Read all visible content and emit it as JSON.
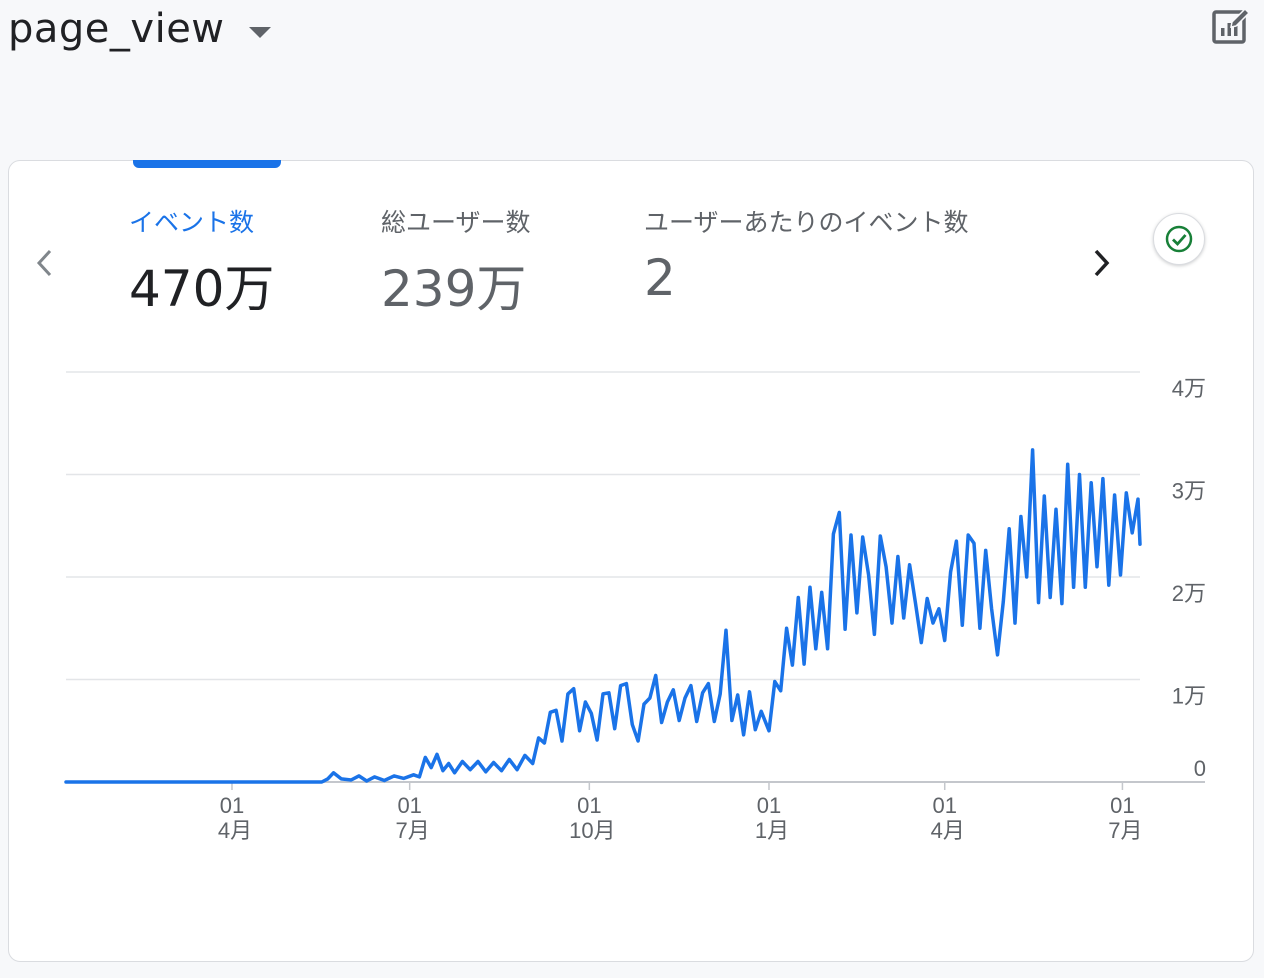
{
  "header": {
    "title": "page_view"
  },
  "metrics": [
    {
      "label": "イベント数",
      "value": "470万",
      "active": true
    },
    {
      "label": "総ユーザー数",
      "value": "239万",
      "active": false
    },
    {
      "label": "ユーザーあたりのイベント数",
      "value": "2",
      "active": false
    }
  ],
  "icons": {
    "edit": "edit-chart-icon",
    "prev": "chevron-left-icon",
    "next": "chevron-right-icon",
    "status": "check-circle-icon"
  },
  "colors": {
    "accent": "#1a73e8",
    "line": "#1a73e8",
    "check": "#188038"
  },
  "chart_data": {
    "type": "line",
    "title": "",
    "xlabel": "",
    "ylabel": "",
    "ylim": [
      0,
      40000
    ],
    "y_ticks": [
      {
        "value": 0,
        "label": "0"
      },
      {
        "value": 10000,
        "label": "1万"
      },
      {
        "value": 20000,
        "label": "2万"
      },
      {
        "value": 30000,
        "label": "3万"
      },
      {
        "value": 40000,
        "label": "4万"
      }
    ],
    "x_ticks": [
      {
        "date": "2022-04-01",
        "day": "01",
        "month": "4月"
      },
      {
        "date": "2022-07-01",
        "day": "01",
        "month": "7月"
      },
      {
        "date": "2022-10-01",
        "day": "01",
        "month": "10月"
      },
      {
        "date": "2023-01-01",
        "day": "01",
        "month": "1月"
      },
      {
        "date": "2023-04-01",
        "day": "01",
        "month": "4月"
      },
      {
        "date": "2023-07-01",
        "day": "01",
        "month": "7月"
      }
    ],
    "x_range": [
      "2022-01-06",
      "2023-07-10"
    ],
    "series": [
      {
        "points": [
          [
            "2022-01-06",
            0
          ],
          [
            "2022-05-17",
            0
          ],
          [
            "2022-05-20",
            300
          ],
          [
            "2022-05-23",
            900
          ],
          [
            "2022-05-27",
            300
          ],
          [
            "2022-06-01",
            200
          ],
          [
            "2022-06-05",
            600
          ],
          [
            "2022-06-09",
            100
          ],
          [
            "2022-06-13",
            500
          ],
          [
            "2022-06-18",
            150
          ],
          [
            "2022-06-23",
            600
          ],
          [
            "2022-06-28",
            350
          ],
          [
            "2022-07-03",
            700
          ],
          [
            "2022-07-06",
            500
          ],
          [
            "2022-07-09",
            2400
          ],
          [
            "2022-07-12",
            1400
          ],
          [
            "2022-07-15",
            2700
          ],
          [
            "2022-07-18",
            1100
          ],
          [
            "2022-07-21",
            1800
          ],
          [
            "2022-07-24",
            900
          ],
          [
            "2022-07-28",
            2000
          ],
          [
            "2022-08-01",
            1200
          ],
          [
            "2022-08-05",
            2000
          ],
          [
            "2022-08-09",
            1000
          ],
          [
            "2022-08-13",
            1900
          ],
          [
            "2022-08-17",
            1100
          ],
          [
            "2022-08-21",
            2200
          ],
          [
            "2022-08-25",
            1200
          ],
          [
            "2022-08-29",
            2600
          ],
          [
            "2022-09-02",
            1800
          ],
          [
            "2022-09-05",
            4300
          ],
          [
            "2022-09-08",
            3800
          ],
          [
            "2022-09-11",
            6800
          ],
          [
            "2022-09-14",
            7000
          ],
          [
            "2022-09-17",
            4000
          ],
          [
            "2022-09-20",
            8600
          ],
          [
            "2022-09-23",
            9100
          ],
          [
            "2022-09-26",
            5000
          ],
          [
            "2022-09-29",
            7800
          ],
          [
            "2022-10-02",
            6700
          ],
          [
            "2022-10-05",
            4100
          ],
          [
            "2022-10-08",
            8600
          ],
          [
            "2022-10-11",
            8700
          ],
          [
            "2022-10-14",
            5200
          ],
          [
            "2022-10-17",
            9400
          ],
          [
            "2022-10-20",
            9600
          ],
          [
            "2022-10-23",
            5600
          ],
          [
            "2022-10-26",
            4000
          ],
          [
            "2022-10-29",
            7600
          ],
          [
            "2022-11-01",
            8200
          ],
          [
            "2022-11-04",
            10400
          ],
          [
            "2022-11-07",
            5800
          ],
          [
            "2022-11-10",
            7800
          ],
          [
            "2022-11-13",
            9000
          ],
          [
            "2022-11-16",
            6000
          ],
          [
            "2022-11-19",
            8200
          ],
          [
            "2022-11-22",
            9400
          ],
          [
            "2022-11-25",
            5900
          ],
          [
            "2022-11-28",
            8700
          ],
          [
            "2022-12-01",
            9600
          ],
          [
            "2022-12-04",
            5900
          ],
          [
            "2022-12-07",
            8600
          ],
          [
            "2022-12-10",
            14800
          ],
          [
            "2022-12-13",
            6000
          ],
          [
            "2022-12-16",
            8500
          ],
          [
            "2022-12-19",
            4600
          ],
          [
            "2022-12-22",
            8800
          ],
          [
            "2022-12-25",
            5100
          ],
          [
            "2022-12-28",
            6900
          ],
          [
            "2023-01-01",
            5000
          ],
          [
            "2023-01-04",
            9800
          ],
          [
            "2023-01-07",
            8900
          ],
          [
            "2023-01-10",
            15000
          ],
          [
            "2023-01-13",
            11400
          ],
          [
            "2023-01-16",
            18000
          ],
          [
            "2023-01-19",
            11500
          ],
          [
            "2023-01-22",
            19000
          ],
          [
            "2023-01-25",
            13000
          ],
          [
            "2023-01-28",
            18500
          ],
          [
            "2023-01-31",
            13000
          ],
          [
            "2023-02-03",
            24200
          ],
          [
            "2023-02-06",
            26300
          ],
          [
            "2023-02-09",
            14900
          ],
          [
            "2023-02-12",
            24100
          ],
          [
            "2023-02-15",
            16500
          ],
          [
            "2023-02-18",
            23900
          ],
          [
            "2023-02-21",
            20200
          ],
          [
            "2023-02-24",
            14400
          ],
          [
            "2023-02-27",
            24000
          ],
          [
            "2023-03-02",
            21000
          ],
          [
            "2023-03-05",
            15500
          ],
          [
            "2023-03-08",
            22000
          ],
          [
            "2023-03-11",
            16000
          ],
          [
            "2023-03-14",
            21200
          ],
          [
            "2023-03-17",
            17500
          ],
          [
            "2023-03-20",
            13600
          ],
          [
            "2023-03-23",
            17900
          ],
          [
            "2023-03-26",
            15500
          ],
          [
            "2023-03-29",
            16900
          ],
          [
            "2023-04-01",
            13800
          ],
          [
            "2023-04-04",
            20500
          ],
          [
            "2023-04-07",
            23500
          ],
          [
            "2023-04-10",
            15300
          ],
          [
            "2023-04-13",
            24100
          ],
          [
            "2023-04-16",
            23300
          ],
          [
            "2023-04-19",
            15000
          ],
          [
            "2023-04-22",
            22600
          ],
          [
            "2023-04-25",
            16900
          ],
          [
            "2023-04-28",
            12400
          ],
          [
            "2023-05-01",
            17600
          ],
          [
            "2023-05-04",
            24700
          ],
          [
            "2023-05-07",
            15500
          ],
          [
            "2023-05-10",
            25900
          ],
          [
            "2023-05-13",
            20000
          ],
          [
            "2023-05-16",
            32400
          ],
          [
            "2023-05-19",
            17500
          ],
          [
            "2023-05-22",
            27900
          ],
          [
            "2023-05-25",
            18000
          ],
          [
            "2023-05-28",
            26600
          ],
          [
            "2023-05-31",
            17400
          ],
          [
            "2023-06-03",
            31000
          ],
          [
            "2023-06-06",
            19000
          ],
          [
            "2023-06-09",
            30000
          ],
          [
            "2023-06-12",
            19000
          ],
          [
            "2023-06-15",
            29200
          ],
          [
            "2023-06-18",
            21000
          ],
          [
            "2023-06-21",
            29600
          ],
          [
            "2023-06-24",
            19200
          ],
          [
            "2023-06-27",
            28000
          ],
          [
            "2023-06-30",
            20200
          ],
          [
            "2023-07-03",
            28200
          ],
          [
            "2023-07-06",
            24300
          ],
          [
            "2023-07-09",
            27600
          ],
          [
            "2023-07-10",
            23200
          ]
        ]
      }
    ],
    "grid": true,
    "legend": "none"
  }
}
